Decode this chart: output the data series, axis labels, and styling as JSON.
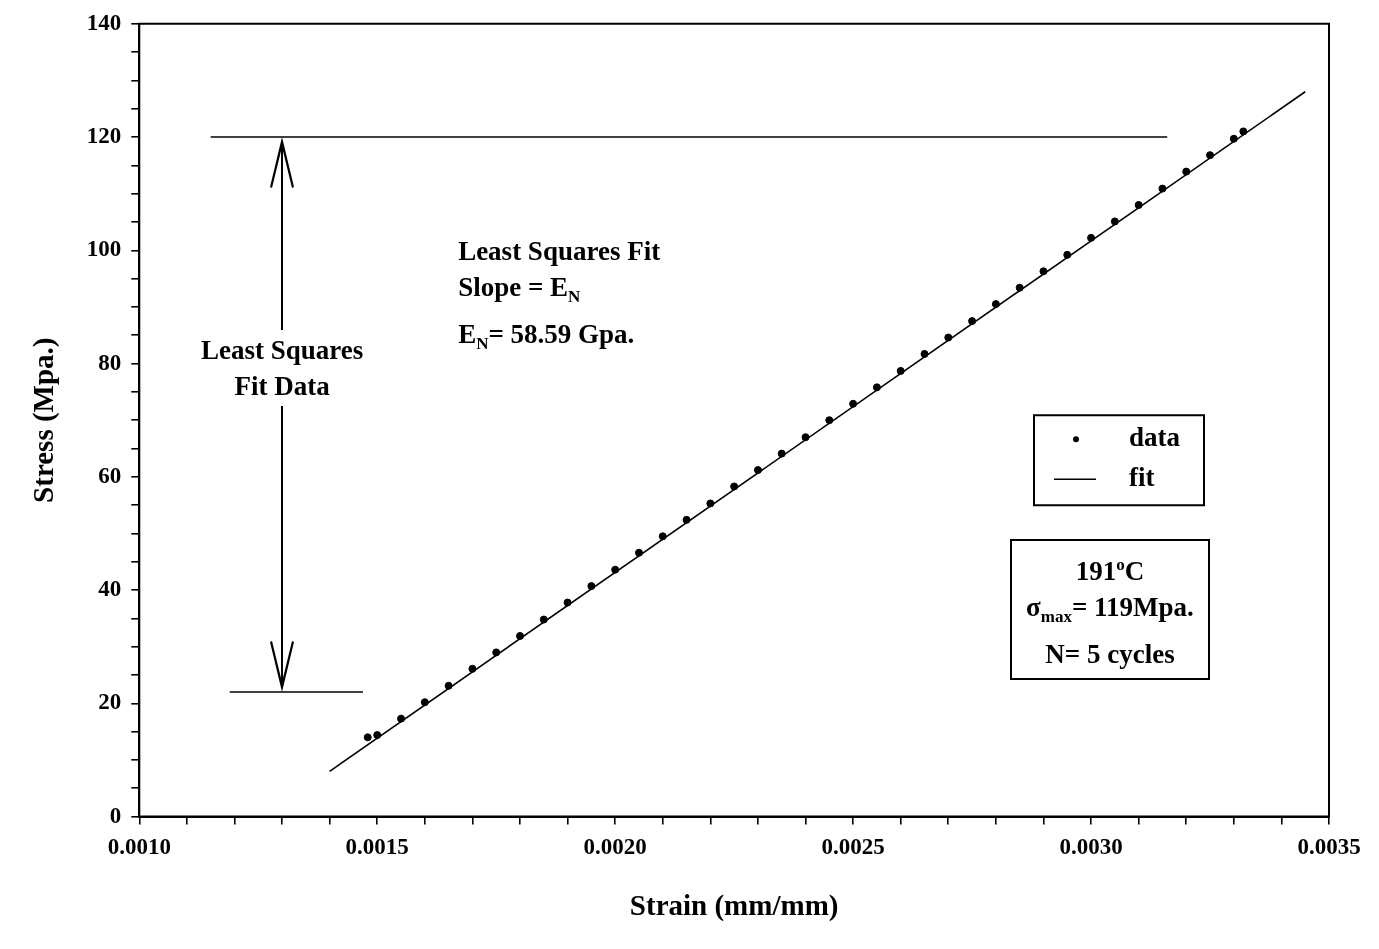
{
  "chart_data": {
    "type": "scatter",
    "xlabel": "Strain (mm/mm)",
    "ylabel": "Stress (Mpa.)",
    "xlim": [
      0.001,
      0.0035
    ],
    "ylim": [
      0,
      140
    ],
    "xticks": [
      {
        "value": 0.001,
        "label": "0.0010"
      },
      {
        "value": 0.0011,
        "label": null
      },
      {
        "value": 0.0012,
        "label": null
      },
      {
        "value": 0.0013,
        "label": null
      },
      {
        "value": 0.0014,
        "label": null
      },
      {
        "value": 0.0015,
        "label": "0.0015"
      },
      {
        "value": 0.0016,
        "label": null
      },
      {
        "value": 0.0017,
        "label": null
      },
      {
        "value": 0.0018,
        "label": null
      },
      {
        "value": 0.0019,
        "label": null
      },
      {
        "value": 0.002,
        "label": "0.0020"
      },
      {
        "value": 0.0021,
        "label": null
      },
      {
        "value": 0.0022,
        "label": null
      },
      {
        "value": 0.0023,
        "label": null
      },
      {
        "value": 0.0024,
        "label": null
      },
      {
        "value": 0.0025,
        "label": "0.0025"
      },
      {
        "value": 0.0026,
        "label": null
      },
      {
        "value": 0.0027,
        "label": null
      },
      {
        "value": 0.0028,
        "label": null
      },
      {
        "value": 0.0029,
        "label": null
      },
      {
        "value": 0.003,
        "label": "0.0030"
      },
      {
        "value": 0.0031,
        "label": null
      },
      {
        "value": 0.0032,
        "label": null
      },
      {
        "value": 0.0033,
        "label": null
      },
      {
        "value": 0.0034,
        "label": null
      },
      {
        "value": 0.0035,
        "label": "0.0035"
      }
    ],
    "yticks": [
      0,
      {
        "value": 5,
        "label": null
      },
      {
        "value": 10,
        "label": null
      },
      {
        "value": 15,
        "label": null
      },
      20,
      {
        "value": 25,
        "label": null
      },
      {
        "value": 30,
        "label": null
      },
      {
        "value": 35,
        "label": null
      },
      40,
      {
        "value": 45,
        "label": null
      },
      {
        "value": 50,
        "label": null
      },
      {
        "value": 55,
        "label": null
      },
      60,
      {
        "value": 65,
        "label": null
      },
      {
        "value": 70,
        "label": null
      },
      {
        "value": 75,
        "label": null
      },
      80,
      {
        "value": 85,
        "label": null
      },
      {
        "value": 90,
        "label": null
      },
      {
        "value": 95,
        "label": null
      },
      100,
      {
        "value": 105,
        "label": null
      },
      {
        "value": 110,
        "label": null
      },
      {
        "value": 115,
        "label": null
      },
      120,
      {
        "value": 125,
        "label": null
      },
      {
        "value": 130,
        "label": null
      },
      {
        "value": 135,
        "label": null
      },
      140
    ],
    "marker": "circle",
    "legend": "right",
    "series": [
      {
        "name": "data",
        "color": "#000000",
        "x": [
          0.00148,
          0.0015,
          0.00155,
          0.0016,
          0.00165,
          0.0017,
          0.00175,
          0.0018,
          0.00185,
          0.0019,
          0.00195,
          0.002,
          0.00205,
          0.0021,
          0.00215,
          0.0022,
          0.00225,
          0.0023,
          0.00235,
          0.0024,
          0.00245,
          0.0025,
          0.00255,
          0.0026,
          0.00265,
          0.0027,
          0.00275,
          0.0028,
          0.00285,
          0.0029,
          0.00295,
          0.003,
          0.00305,
          0.0031,
          0.00315,
          0.0032,
          0.00325,
          0.0033,
          0.00332
        ],
        "values": [
          14,
          14.4,
          17.3,
          20.2,
          23.1,
          26.1,
          29,
          31.9,
          34.8,
          37.8,
          40.7,
          43.6,
          46.6,
          49.5,
          52.4,
          55.3,
          58.3,
          61.2,
          64.1,
          67,
          70,
          72.9,
          75.8,
          78.7,
          81.7,
          84.6,
          87.5,
          90.5,
          93.4,
          96.3,
          99.2,
          102.2,
          105.1,
          108,
          110.9,
          113.9,
          116.8,
          119.7,
          121
        ]
      },
      {
        "name": "fit",
        "type": "line",
        "marker": "none",
        "color": "#000000",
        "x": [
          0.0014,
          0.00345
        ],
        "values": [
          8,
          128
        ]
      }
    ],
    "ref_lines": [
      {
        "axis": "y",
        "value": 120,
        "color": "#000000"
      },
      {
        "axis": "y",
        "value": 22,
        "color": "#000000"
      }
    ],
    "annotations": [
      "Least Squares Fit\nSlope = E$_{N}$\nE$_{N}$= 58.59 Gpa.",
      "Least Squares\nFit Data",
      "191$^{o}$C\nσ$_{max}$= 119Mpa.\nN= 5 cycles"
    ]
  }
}
